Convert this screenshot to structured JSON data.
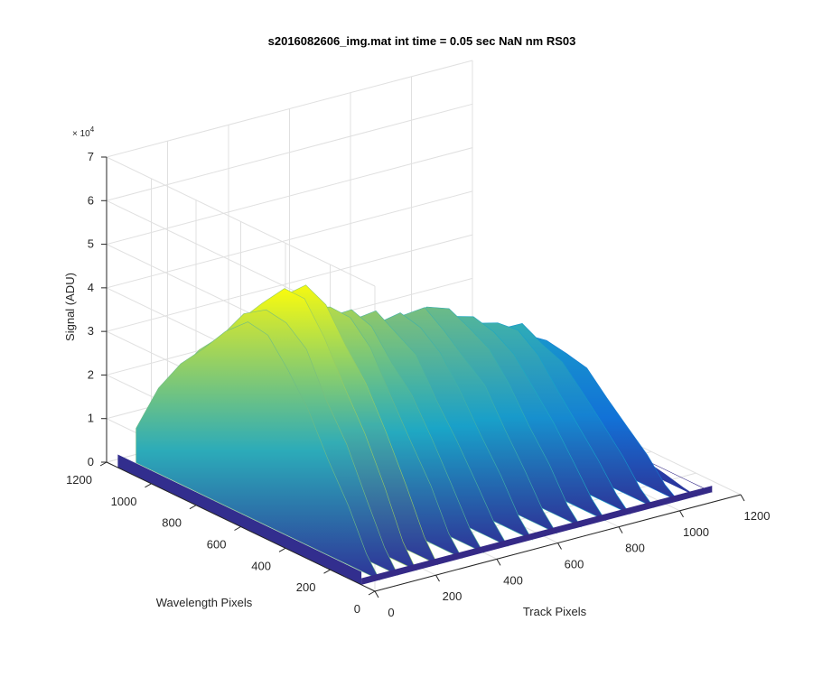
{
  "chart_data": {
    "type": "surface",
    "title": "s2016082606_img.mat int time = 0.05 sec  NaN nm RS03",
    "xlabel": "Track Pixels",
    "ylabel": "Wavelength Pixels",
    "zlabel": "Signal (ADU)",
    "z_multiplier": "× 10",
    "z_multiplier_exp": "4",
    "xlim": [
      0,
      1200
    ],
    "ylim": [
      0,
      1200
    ],
    "zlim": [
      0,
      70000
    ],
    "x_ticks": [
      "0",
      "200",
      "400",
      "600",
      "800",
      "1000",
      "1200"
    ],
    "y_ticks": [
      "0",
      "200",
      "400",
      "600",
      "800",
      "1000",
      "1200"
    ],
    "z_ticks": [
      "0",
      "1",
      "2",
      "3",
      "4",
      "5",
      "6",
      "7"
    ],
    "grid": true,
    "colormap": "parula",
    "colors": {
      "low": "#352a87",
      "mid_low": "#0f5cdd",
      "mid": "#1aa7c7",
      "mid_high": "#7cbf7b",
      "high": "#f9fb0e",
      "grid": "#e0e0e0",
      "axis": "#262626"
    },
    "track_columns": [
      {
        "track": 0,
        "peak": 0
      },
      {
        "track": 60,
        "peak": 44000
      },
      {
        "track": 120,
        "peak": 47000
      },
      {
        "track": 180,
        "peak": 50000
      },
      {
        "track": 250,
        "peak": 48000
      },
      {
        "track": 330,
        "peak": 43000
      },
      {
        "track": 400,
        "peak": 40000
      },
      {
        "track": 480,
        "peak": 38000
      },
      {
        "track": 560,
        "peak": 37000
      },
      {
        "track": 640,
        "peak": 36000
      },
      {
        "track": 720,
        "peak": 35000
      },
      {
        "track": 800,
        "peak": 33000
      },
      {
        "track": 880,
        "peak": 30000
      },
      {
        "track": 960,
        "peak": 27000
      },
      {
        "track": 1040,
        "peak": 23000
      },
      {
        "track": 1100,
        "peak": 5000
      },
      {
        "track": 1150,
        "peak": 0
      }
    ],
    "wavelength_profile": [
      {
        "wavelength": 1150,
        "rel": 0.18
      },
      {
        "wavelength": 1050,
        "rel": 0.45
      },
      {
        "wavelength": 950,
        "rel": 0.62
      },
      {
        "wavelength": 850,
        "rel": 0.78
      },
      {
        "wavelength": 750,
        "rel": 0.92
      },
      {
        "wavelength": 650,
        "rel": 1.0
      },
      {
        "wavelength": 560,
        "rel": 0.97
      },
      {
        "wavelength": 470,
        "rel": 0.86
      },
      {
        "wavelength": 380,
        "rel": 0.7
      },
      {
        "wavelength": 290,
        "rel": 0.5
      },
      {
        "wavelength": 200,
        "rel": 0.3
      },
      {
        "wavelength": 120,
        "rel": 0.1
      },
      {
        "wavelength": 60,
        "rel": 0.0
      }
    ]
  }
}
